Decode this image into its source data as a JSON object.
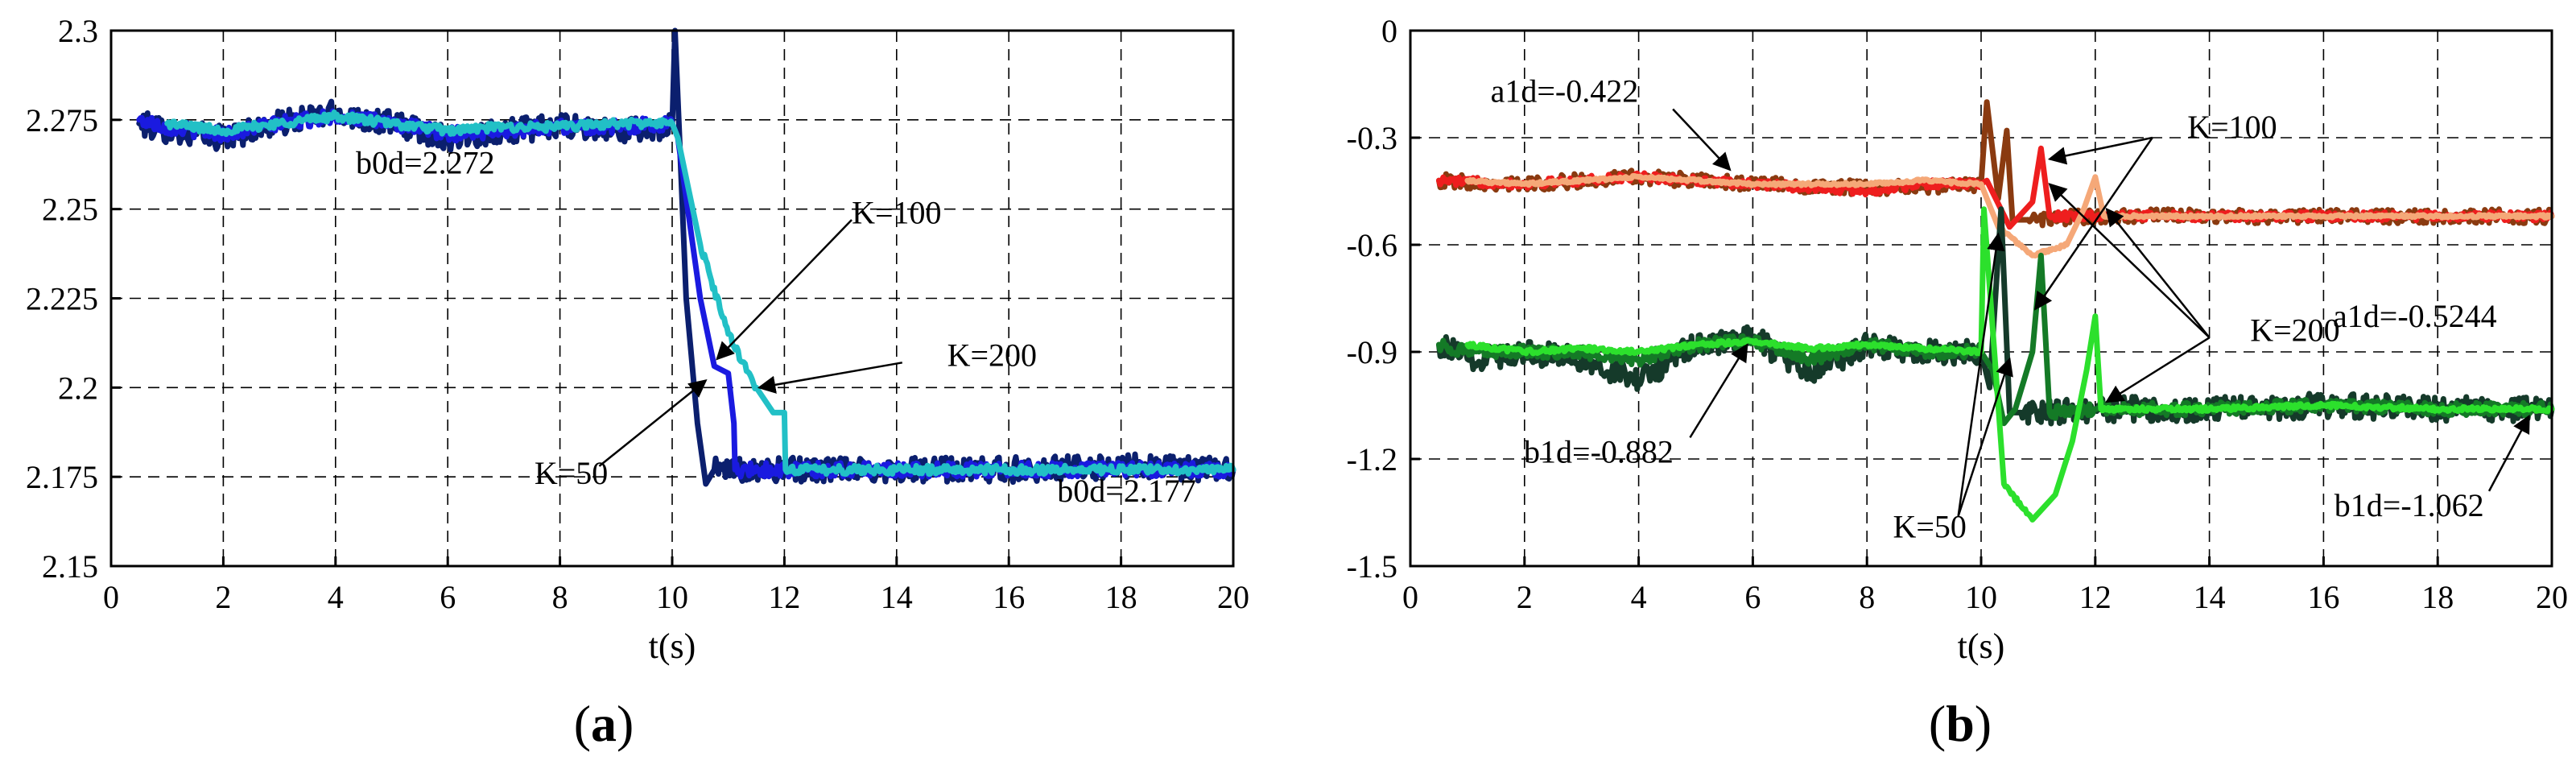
{
  "chart_data": [
    {
      "type": "line",
      "panel_label": "a",
      "xlabel": "t(s)",
      "ylabel": "",
      "xlim": [
        0,
        20
      ],
      "ylim": [
        2.15,
        2.3
      ],
      "xticks": [
        0,
        2,
        4,
        6,
        8,
        10,
        12,
        14,
        16,
        18,
        20
      ],
      "yticks": [
        2.15,
        2.175,
        2.2,
        2.225,
        2.25,
        2.275,
        2.3
      ],
      "ytick_labels": [
        "2.15",
        "2.175",
        "2.2",
        "2.225",
        "2.25",
        "2.275",
        "2.3"
      ],
      "grid": true,
      "series": [
        {
          "name": "K=50",
          "color": "#0b1f6e",
          "noise": 0.0035,
          "x": [
            0.5,
            1,
            2,
            3,
            4,
            5,
            6,
            7,
            8,
            9,
            10,
            10.05,
            10.25,
            10.45,
            10.6,
            10.75,
            12,
            14,
            16,
            18,
            20
          ],
          "y": [
            2.274,
            2.272,
            2.27,
            2.274,
            2.277,
            2.274,
            2.27,
            2.272,
            2.273,
            2.272,
            2.273,
            2.3,
            2.225,
            2.19,
            2.173,
            2.177,
            2.177,
            2.177,
            2.177,
            2.178,
            2.177
          ]
        },
        {
          "name": "K=100",
          "color": "#1a1ae0",
          "noise": 0.002,
          "x": [
            0.5,
            1,
            2,
            3,
            4,
            5,
            6,
            7,
            8,
            9,
            10,
            10.1,
            10.5,
            10.75,
            11.0,
            11.1,
            11.12,
            12,
            14,
            16,
            18,
            20
          ],
          "y": [
            2.275,
            2.273,
            2.271,
            2.274,
            2.276,
            2.274,
            2.271,
            2.272,
            2.273,
            2.273,
            2.274,
            2.27,
            2.225,
            2.206,
            2.204,
            2.19,
            2.177,
            2.177,
            2.177,
            2.177,
            2.177,
            2.177
          ]
        },
        {
          "name": "K=200",
          "color": "#22c0c6",
          "noise": 0.0012,
          "x": [
            1,
            2,
            3,
            4,
            5,
            6,
            7,
            8,
            9,
            10,
            10.1,
            10.5,
            11.0,
            11.5,
            11.8,
            12.0,
            12.02,
            14,
            16,
            18,
            20
          ],
          "y": [
            2.274,
            2.272,
            2.274,
            2.276,
            2.274,
            2.272,
            2.273,
            2.273,
            2.274,
            2.274,
            2.27,
            2.24,
            2.215,
            2.2,
            2.193,
            2.193,
            2.177,
            2.177,
            2.177,
            2.177,
            2.177
          ]
        }
      ],
      "annotations": [
        {
          "text": "b0d=2.272",
          "x": 5.6,
          "y": 2.26
        },
        {
          "text": "b0d=2.177",
          "x": 18.1,
          "y": 2.168
        },
        {
          "text": "K=100",
          "x": 14.0,
          "y": 2.246,
          "arrow_from": [
            13.2,
            2.247
          ],
          "arrow_to": [
            10.8,
            2.208
          ]
        },
        {
          "text": "K=200",
          "x": 15.7,
          "y": 2.206,
          "arrow_from": [
            14.1,
            2.207
          ],
          "arrow_to": [
            11.55,
            2.2
          ]
        },
        {
          "text": "K=50",
          "x": 8.2,
          "y": 2.173,
          "arrow_from": [
            8.7,
            2.178
          ],
          "arrow_to": [
            10.6,
            2.202
          ]
        }
      ]
    },
    {
      "type": "line",
      "panel_label": "b",
      "xlabel": "t(s)",
      "ylabel": "",
      "xlim": [
        0,
        20
      ],
      "ylim": [
        -1.5,
        0
      ],
      "xticks": [
        0,
        2,
        4,
        6,
        8,
        10,
        12,
        14,
        16,
        18,
        20
      ],
      "yticks": [
        0,
        -0.3,
        -0.6,
        -0.9,
        -1.2,
        -1.5
      ],
      "ytick_labels": [
        "0",
        "-0.3",
        "-0.6",
        "-0.9",
        "-1.2",
        "-1.5"
      ],
      "grid": true,
      "series": [
        {
          "name": "a1d K=50",
          "color": "#8a3a10",
          "noise": 0.02,
          "x": [
            0.5,
            2,
            4,
            6,
            8,
            9,
            10,
            10.1,
            10.3,
            10.45,
            10.55,
            10.8,
            12,
            14,
            16,
            18,
            20
          ],
          "y": [
            -0.42,
            -0.43,
            -0.41,
            -0.43,
            -0.44,
            -0.44,
            -0.43,
            -0.2,
            -0.47,
            -0.28,
            -0.53,
            -0.53,
            -0.52,
            -0.52,
            -0.52,
            -0.52,
            -0.52
          ]
        },
        {
          "name": "a1d K=100",
          "color": "#ee1e1e",
          "noise": 0.012,
          "x": [
            0.5,
            2,
            4,
            6,
            8,
            9,
            10,
            10.1,
            10.5,
            10.9,
            11.05,
            11.2,
            12,
            14,
            16,
            18,
            20
          ],
          "y": [
            -0.42,
            -0.43,
            -0.41,
            -0.43,
            -0.45,
            -0.43,
            -0.43,
            -0.42,
            -0.55,
            -0.48,
            -0.33,
            -0.52,
            -0.52,
            -0.52,
            -0.52,
            -0.52,
            -0.52
          ]
        },
        {
          "name": "a1d K=200",
          "color": "#f5a878",
          "noise": 0.004,
          "x": [
            1,
            2,
            4,
            6,
            8,
            9,
            10,
            10.3,
            10.9,
            11.5,
            11.8,
            12.0,
            12.15,
            14,
            16,
            18,
            20
          ],
          "y": [
            -0.42,
            -0.43,
            -0.41,
            -0.43,
            -0.43,
            -0.42,
            -0.43,
            -0.55,
            -0.63,
            -0.6,
            -0.5,
            -0.41,
            -0.52,
            -0.52,
            -0.52,
            -0.52,
            -0.52
          ]
        },
        {
          "name": "b1d K=50",
          "color": "#153a2a",
          "noise": 0.035,
          "x": [
            0.5,
            1,
            2,
            3,
            4,
            5,
            6,
            7,
            8,
            9,
            10,
            10.15,
            10.35,
            10.5,
            10.7,
            12,
            14,
            16,
            18,
            20
          ],
          "y": [
            -0.88,
            -0.92,
            -0.9,
            -0.92,
            -0.98,
            -0.88,
            -0.86,
            -0.96,
            -0.88,
            -0.9,
            -0.9,
            -1.0,
            -0.5,
            -1.07,
            -1.07,
            -1.06,
            -1.06,
            -1.05,
            -1.06,
            -1.06
          ]
        },
        {
          "name": "b1d K=100",
          "color": "#147a26",
          "noise": 0.018,
          "x": [
            0.5,
            1,
            2,
            3,
            4,
            5,
            6,
            7,
            8,
            9,
            10,
            10.2,
            10.4,
            10.6,
            10.9,
            11.05,
            11.2,
            12,
            14,
            16,
            18,
            20
          ],
          "y": [
            -0.88,
            -0.9,
            -0.9,
            -0.9,
            -0.92,
            -0.88,
            -0.87,
            -0.92,
            -0.88,
            -0.9,
            -0.9,
            -0.95,
            -1.1,
            -1.06,
            -0.9,
            -0.63,
            -1.07,
            -1.06,
            -1.06,
            -1.05,
            -1.06,
            -1.06
          ]
        },
        {
          "name": "b1d K=200",
          "color": "#2ce02c",
          "noise": 0.006,
          "x": [
            1,
            2,
            3,
            4,
            5,
            6,
            7,
            8,
            9,
            10,
            10.05,
            10.4,
            10.9,
            11.3,
            11.6,
            11.85,
            12.0,
            12.1,
            14,
            16,
            18,
            20
          ],
          "y": [
            -0.88,
            -0.9,
            -0.89,
            -0.9,
            -0.88,
            -0.87,
            -0.89,
            -0.88,
            -0.89,
            -0.9,
            -0.5,
            -1.27,
            -1.37,
            -1.3,
            -1.15,
            -0.95,
            -0.8,
            -1.06,
            -1.06,
            -1.05,
            -1.06,
            -1.06
          ]
        }
      ],
      "annotations": [
        {
          "text": "a1d=-0.422",
          "x": 2.7,
          "y": -0.2,
          "arrow_from": [
            4.6,
            -0.22
          ],
          "arrow_to": [
            5.6,
            -0.39
          ]
        },
        {
          "text": "K=100",
          "x": 14.4,
          "y": -0.3,
          "arrow_from": [
            13.0,
            -0.3
          ],
          "arrow_to": [
            11.2,
            -0.36
          ]
        },
        {
          "text": "a1d=-0.5244",
          "x": 17.6,
          "y": -0.83
        },
        {
          "text": "K=200",
          "x": 15.5,
          "y": -0.87
        },
        {
          "text": "b1d=-0.882",
          "x": 3.3,
          "y": -1.21,
          "arrow_from": [
            4.9,
            -1.14
          ],
          "arrow_to": [
            5.9,
            -0.88
          ]
        },
        {
          "text": "K=50",
          "x": 9.1,
          "y": -1.42
        },
        {
          "text": "b1d=-1.062",
          "x": 17.5,
          "y": -1.36,
          "arrow_from": [
            18.9,
            -1.29
          ],
          "arrow_to": [
            19.6,
            -1.08
          ]
        }
      ],
      "arrow_groups": [
        {
          "from": [
            13.0,
            -0.3
          ],
          "to": [
            [
              10.95,
              -0.78
            ]
          ]
        },
        {
          "from": [
            14.0,
            -0.86
          ],
          "to": [
            [
              12.2,
              -0.5
            ],
            [
              11.2,
              -0.43
            ],
            [
              12.2,
              -1.04
            ]
          ]
        },
        {
          "from": [
            9.6,
            -1.36
          ],
          "to": [
            [
              10.3,
              -0.57
            ],
            [
              10.5,
              -0.92
            ]
          ]
        }
      ]
    }
  ]
}
